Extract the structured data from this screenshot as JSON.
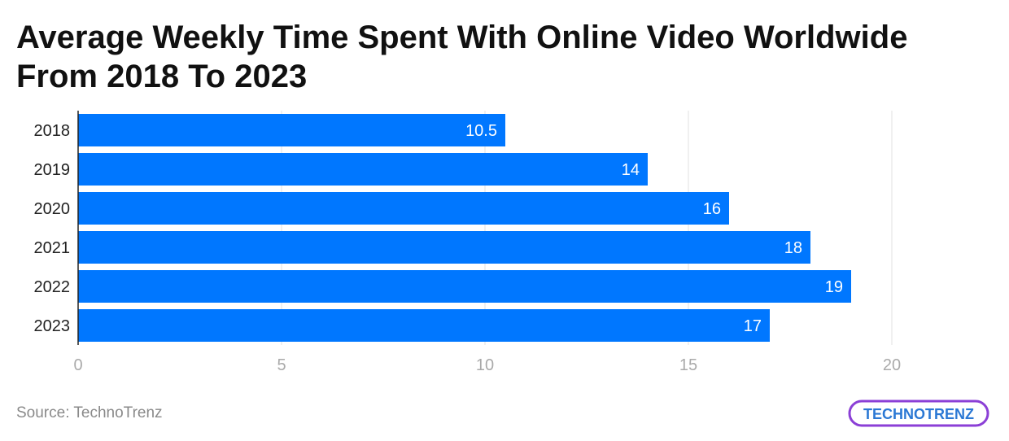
{
  "title": "Average Weekly Time Spent With Online Video Worldwide From 2018 To 2023",
  "source": "Source: TechnoTrenz",
  "logo_text": "TECHNOTRENZ",
  "colors": {
    "bar": "#0077ff",
    "grid": "#e0e0e0",
    "axis": "#222222",
    "tick": "#aaaaaa",
    "logo_border": "#8b3fd6",
    "logo_text": "#2b78d4"
  },
  "chart_data": {
    "type": "bar",
    "orientation": "horizontal",
    "title": "Average Weekly Time Spent With Online Video Worldwide From 2018 To 2023",
    "xlabel": "",
    "ylabel": "",
    "categories": [
      "2018",
      "2019",
      "2020",
      "2021",
      "2022",
      "2023"
    ],
    "values": [
      10.5,
      14,
      16,
      18,
      19,
      17
    ],
    "value_labels": [
      "10.5",
      "14",
      "16",
      "18",
      "19",
      "17"
    ],
    "xlim": [
      0,
      20
    ],
    "xticks": [
      0,
      5,
      10,
      15,
      20
    ],
    "grid": true,
    "legend": "none"
  }
}
